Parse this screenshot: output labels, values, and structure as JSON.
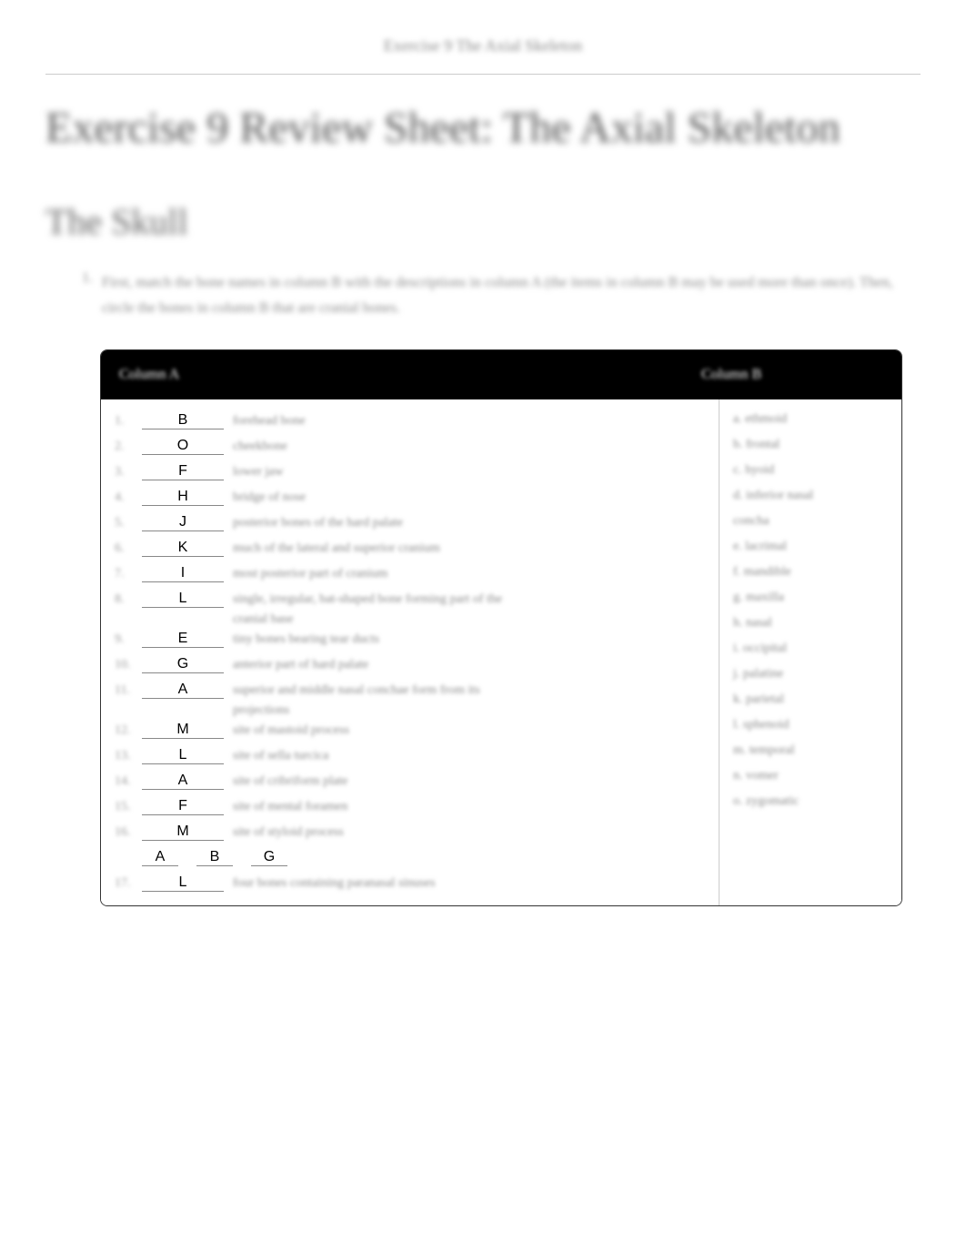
{
  "header_label": "Exercise 9 The Axial Skeleton",
  "page_title": "Exercise 9 Review Sheet: The Axial Skeleton",
  "section_title": "The Skull",
  "instruction_number": "1.",
  "instruction_text": "First, match the bone names in column B with the descriptions in column A (the items in column B may be used more than once). Then, circle the bones in column B that are cranial bones.",
  "table": {
    "header_a": "Column A",
    "header_b": "Column B",
    "rows_a": [
      {
        "num": "1.",
        "answer": "B",
        "desc": "forehead bone"
      },
      {
        "num": "2.",
        "answer": "O",
        "desc": "cheekbone"
      },
      {
        "num": "3.",
        "answer": "F",
        "desc": "lower jaw"
      },
      {
        "num": "4.",
        "answer": "H",
        "desc": "bridge of nose"
      },
      {
        "num": "5.",
        "answer": "J",
        "desc": "posterior bones of the hard palate"
      },
      {
        "num": "6.",
        "answer": "K",
        "desc": "much of the lateral and superior cranium"
      },
      {
        "num": "7.",
        "answer": "I",
        "desc": "most posterior part of cranium"
      },
      {
        "num": "8.",
        "answer": "L",
        "desc": "single, irregular, bat-shaped bone forming part of the"
      },
      {
        "continuation": "cranial base"
      },
      {
        "num": "9.",
        "answer": "E",
        "desc": "tiny bones bearing tear ducts"
      },
      {
        "num": "10.",
        "answer": "G",
        "desc": "anterior part of hard palate"
      },
      {
        "num": "11.",
        "answer": "A",
        "desc": "superior and middle nasal conchae form from its"
      },
      {
        "continuation": "projections"
      },
      {
        "num": "12.",
        "answer": "M",
        "desc": "site of mastoid process"
      },
      {
        "num": "13.",
        "answer": "L",
        "desc": "site of sella turcica"
      },
      {
        "num": "14.",
        "answer": "A",
        "desc": "site of cribriform plate"
      },
      {
        "num": "15.",
        "answer": "F",
        "desc": "site of mental foramen"
      },
      {
        "num": "16.",
        "answer": "M",
        "desc": "site of styloid process"
      },
      {
        "multi": [
          "A",
          "B",
          "G"
        ]
      },
      {
        "num": "17.",
        "answer": "L",
        "desc": "four bones containing paranasal sinuses"
      }
    ],
    "rows_b": [
      "a. ethmoid",
      "b. frontal",
      "c. hyoid",
      "d. inferior nasal",
      "concha",
      "e. lacrimal",
      "f. mandible",
      "g. maxilla",
      "h. nasal",
      "i. occipital",
      "j. palatine",
      "k. parietal",
      "l. sphenoid",
      "m. temporal",
      "n. vomer",
      "o. zygomatic"
    ]
  }
}
